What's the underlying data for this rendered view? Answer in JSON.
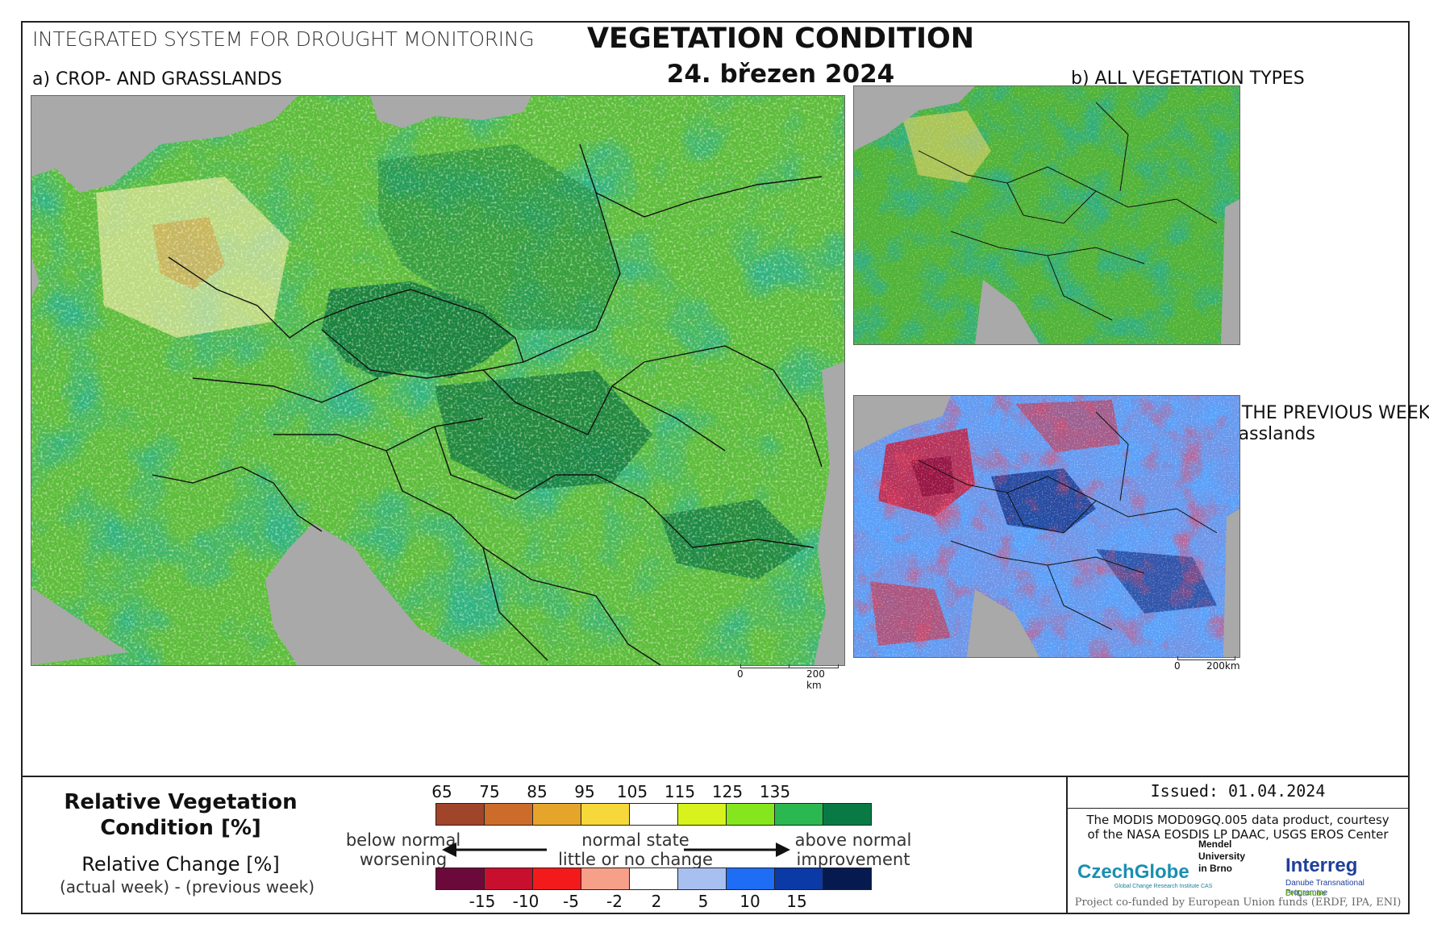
{
  "header": {
    "system": "INTEGRATED SYSTEM FOR DROUGHT MONITORING",
    "title": "VEGETATION CONDITION",
    "date": "24. březen 2024"
  },
  "panels": {
    "a": {
      "label": "a) CROP- AND GRASSLANDS"
    },
    "b": {
      "label": "b) ALL VEGETATION TYPES"
    },
    "c": {
      "label": "c) CHANGE COMPARED WITH THE PREVIOUS WEEK",
      "sublabel": "for crop- and grasslands"
    }
  },
  "scalebar_a": {
    "start": "0",
    "end": "200 km"
  },
  "scalebar_c": {
    "start": "0",
    "end": "200km"
  },
  "legend": {
    "title_line1": "Relative Vegetation",
    "title_line2": "Condition [%]",
    "change_title": "Relative Change [%]",
    "change_sub": "(actual week) - (previous week)",
    "condition_ticks": [
      "65",
      "75",
      "85",
      "95",
      "105",
      "115",
      "125",
      "135"
    ],
    "condition_colors": [
      "#a0442a",
      "#cd6b2a",
      "#e5a42a",
      "#f7d83a",
      "#ffffff",
      "#d7f21c",
      "#86e61e",
      "#2bb851",
      "#0a7a45"
    ],
    "change_ticks": [
      "-15",
      "-10",
      "-5",
      "-2",
      "2",
      "5",
      "10",
      "15"
    ],
    "change_colors": [
      "#6b0a3a",
      "#c8102e",
      "#f21a1a",
      "#f6a08a",
      "#ffffff",
      "#a8c0f0",
      "#1f6cf5",
      "#0b3aa6",
      "#061a4f"
    ],
    "left_label_1": "below normal",
    "left_label_2": "worsening",
    "center_label_1": "normal state",
    "center_label_2": "little or no change",
    "right_label_1": "above normal",
    "right_label_2": "improvement"
  },
  "footer": {
    "issued": "Issued: 01.04.2024",
    "credit_line1": "The MODIS MOD09GQ.005 data product, courtesy",
    "credit_line2": "of the NASA EOSDIS LP DAAC, USGS EROS Center",
    "logo_czechglobe": "CzechGlobe",
    "logo_czechglobe_sub": "Global Change Research Institute CAS",
    "logo_mendel_1": "Mendel",
    "logo_mendel_2": "University",
    "logo_mendel_3": "in Brno",
    "logo_interreg": "Interreg",
    "logo_interreg_sub": "Danube Transnational Programme",
    "logo_interreg_sub2": "DriDanube",
    "funded": "Project co-funded by European Union funds (ERDF, IPA, ENI)"
  }
}
